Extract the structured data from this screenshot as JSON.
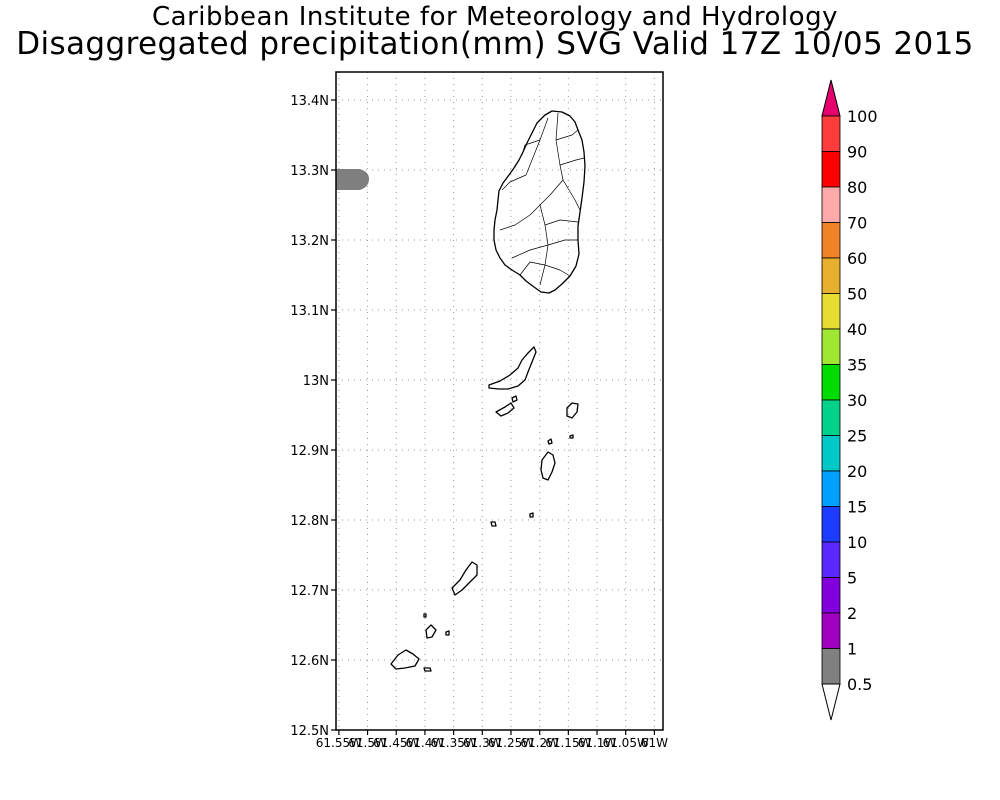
{
  "header": {
    "title": "Caribbean Institute for Meteorology and Hydrology",
    "subtitle": "Disaggregated precipitation(mm) SVG Valid 17Z 10/05 2015"
  },
  "map": {
    "lat_labels": [
      "13.4N",
      "13.3N",
      "13.2N",
      "13.1N",
      "13N",
      "12.9N",
      "12.8N",
      "12.7N",
      "12.6N",
      "12.5N"
    ],
    "lat_values": [
      13.4,
      13.3,
      13.2,
      13.1,
      13.0,
      12.9,
      12.8,
      12.7,
      12.6,
      12.5
    ],
    "lon_labels": [
      "61.55W",
      "61.5W",
      "61.45W",
      "61.4W",
      "61.35W",
      "61.3W",
      "61.25W",
      "61.2W",
      "61.15W",
      "61.1W",
      "61.05W",
      "61W"
    ],
    "lon_values": [
      -61.55,
      -61.5,
      -61.45,
      -61.4,
      -61.35,
      -61.3,
      -61.25,
      -61.2,
      -61.15,
      -61.1,
      -61.05,
      -61.0
    ],
    "lat_range": [
      12.5,
      13.44
    ],
    "lon_range": [
      -61.555,
      -60.985
    ],
    "grid": "dotted",
    "precip_area": {
      "label": "0.5-1 mm",
      "color": "#7f7f7f"
    }
  },
  "legend": {
    "levels": [
      "0.5",
      "1",
      "2",
      "5",
      "10",
      "15",
      "20",
      "25",
      "30",
      "35",
      "40",
      "50",
      "60",
      "70",
      "80",
      "90",
      "100"
    ],
    "colors": [
      "#808080",
      "#a000c0",
      "#8200dc",
      "#5a28ff",
      "#1e3cff",
      "#00a0ff",
      "#00c8c8",
      "#00d28c",
      "#00dc00",
      "#a0e632",
      "#e6dc32",
      "#e6af2d",
      "#f08228",
      "#ffaaaa",
      "#ff0000",
      "#ff3c3c",
      "#e6006e"
    ],
    "below_color": "#ffffff",
    "above_color": "#e6006e"
  }
}
